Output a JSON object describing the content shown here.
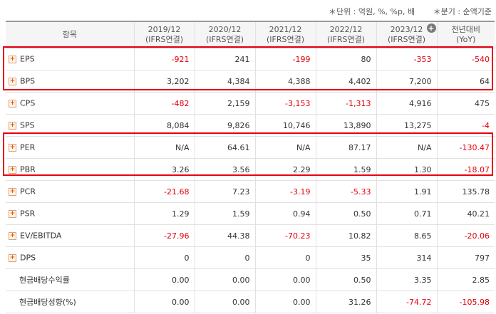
{
  "notes": {
    "unit": "＊단위 : 억원, %, %p, 배",
    "quarter": "＊분기 : 순액기준"
  },
  "header": {
    "item": "항목",
    "periods": [
      {
        "year": "2019/12",
        "basis": "(IFRS연결)"
      },
      {
        "year": "2020/12",
        "basis": "(IFRS연결)"
      },
      {
        "year": "2021/12",
        "basis": "(IFRS연결)"
      },
      {
        "year": "2022/12",
        "basis": "(IFRS연결)"
      },
      {
        "year": "2023/12",
        "basis": "(IFRS연결)"
      }
    ],
    "yoy_top": "전년대비",
    "yoy_bottom": "(YoY)"
  },
  "colors": {
    "negative": "#e3000b",
    "highlight": "#e8000c"
  },
  "rows": [
    {
      "label": "EPS",
      "expand": true,
      "values": [
        "-921",
        "241",
        "-199",
        "80",
        "-353",
        "-540"
      ]
    },
    {
      "label": "BPS",
      "expand": true,
      "values": [
        "3,202",
        "4,384",
        "4,388",
        "4,402",
        "7,200",
        "64"
      ]
    },
    {
      "label": "CPS",
      "expand": true,
      "values": [
        "-482",
        "2,159",
        "-3,153",
        "-1,313",
        "4,916",
        "475"
      ]
    },
    {
      "label": "SPS",
      "expand": true,
      "values": [
        "8,084",
        "9,826",
        "10,746",
        "13,890",
        "13,275",
        "-4"
      ]
    },
    {
      "label": "PER",
      "expand": true,
      "values": [
        "N/A",
        "64.61",
        "N/A",
        "87.17",
        "N/A",
        "-130.47"
      ]
    },
    {
      "label": "PBR",
      "expand": true,
      "values": [
        "3.26",
        "3.56",
        "2.29",
        "1.59",
        "1.30",
        "-18.07"
      ]
    },
    {
      "label": "PCR",
      "expand": true,
      "values": [
        "-21.68",
        "7.23",
        "-3.19",
        "-5.33",
        "1.91",
        "135.78"
      ]
    },
    {
      "label": "PSR",
      "expand": true,
      "values": [
        "1.29",
        "1.59",
        "0.94",
        "0.50",
        "0.71",
        "40.21"
      ]
    },
    {
      "label": "EV/EBITDA",
      "expand": true,
      "values": [
        "-27.96",
        "44.38",
        "-70.23",
        "10.82",
        "8.65",
        "-20.06"
      ]
    },
    {
      "label": "DPS",
      "expand": true,
      "values": [
        "0",
        "0",
        "0",
        "35",
        "314",
        "797"
      ]
    },
    {
      "label": "현금배당수익률",
      "expand": false,
      "values": [
        "0.00",
        "0.00",
        "0.00",
        "0.50",
        "3.35",
        "2.85"
      ]
    },
    {
      "label": "현금배당성향(%)",
      "expand": false,
      "values": [
        "0.00",
        "0.00",
        "0.00",
        "31.26",
        "-74.72",
        "-105.98"
      ]
    }
  ]
}
